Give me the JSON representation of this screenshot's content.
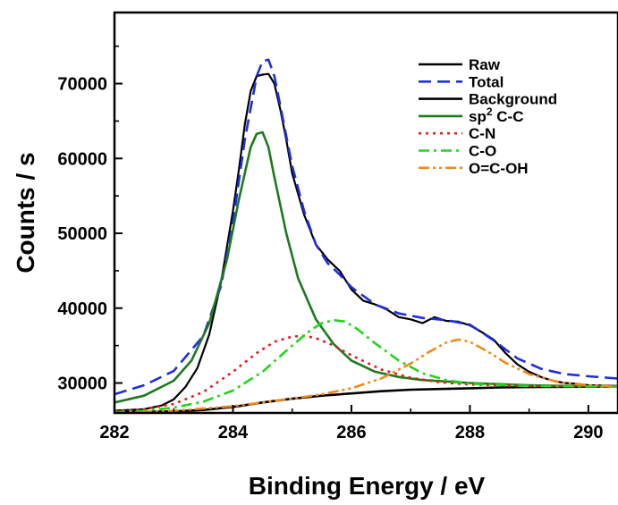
{
  "chart_data": {
    "type": "line",
    "title": "",
    "xlabel": "Binding Energy / eV",
    "ylabel": "Counts / s",
    "xlim": [
      282,
      290.5
    ],
    "ylim": [
      26000,
      79500
    ],
    "xticks": [
      282,
      284,
      286,
      288,
      290
    ],
    "xtick_labels": [
      "282",
      "284",
      "286",
      "288",
      "290"
    ],
    "yticks": [
      30000,
      40000,
      50000,
      60000,
      70000
    ],
    "ytick_labels": [
      "30000",
      "40000",
      "50000",
      "60000",
      "70000"
    ],
    "legend_position": "top-right",
    "grid": false,
    "legend": [
      {
        "key": "raw",
        "label": "Raw"
      },
      {
        "key": "total",
        "label": "Total"
      },
      {
        "key": "background",
        "label": "Background"
      },
      {
        "key": "sp2",
        "label_main": "sp",
        "label_sup": "2",
        "label_rest": " C-C"
      },
      {
        "key": "cn",
        "label": "C-N"
      },
      {
        "key": "co",
        "label": "C-O"
      },
      {
        "key": "ocoh",
        "label": "O=C-OH"
      }
    ],
    "series": [
      {
        "key": "raw",
        "name": "Raw",
        "color": "#000000",
        "dash": "solid",
        "x": [
          282.0,
          282.5,
          282.8,
          283.0,
          283.2,
          283.4,
          283.6,
          283.8,
          284.0,
          284.1,
          284.2,
          284.3,
          284.4,
          284.5,
          284.6,
          284.7,
          284.8,
          284.9,
          285.0,
          285.2,
          285.4,
          285.6,
          285.8,
          286.0,
          286.2,
          286.4,
          286.6,
          286.8,
          287.0,
          287.2,
          287.4,
          287.6,
          287.8,
          288.0,
          288.2,
          288.4,
          288.6,
          288.8,
          289.0,
          289.2,
          289.4,
          289.6,
          289.8,
          290.0,
          290.5
        ],
        "y": [
          26300,
          26500,
          27000,
          27800,
          29500,
          32000,
          36500,
          43500,
          53000,
          58500,
          64500,
          69000,
          71000,
          71200,
          71300,
          70000,
          66500,
          62500,
          58000,
          52500,
          48500,
          46500,
          45000,
          42500,
          41000,
          40500,
          39800,
          38800,
          38500,
          38000,
          38800,
          38300,
          38200,
          37700,
          36800,
          35800,
          34000,
          32500,
          31500,
          30800,
          30300,
          30000,
          29900,
          29700,
          29600
        ]
      },
      {
        "key": "total",
        "name": "Total",
        "color": "#1f2ee0",
        "dash": "dashed",
        "x": [
          282.0,
          282.5,
          283.0,
          283.5,
          283.8,
          284.0,
          284.2,
          284.4,
          284.5,
          284.6,
          284.7,
          284.8,
          285.0,
          285.2,
          285.4,
          285.6,
          285.8,
          286.0,
          286.4,
          286.8,
          287.2,
          287.6,
          288.0,
          288.4,
          288.8,
          289.2,
          289.6,
          290.0,
          290.5
        ],
        "y": [
          28500,
          29700,
          31600,
          36300,
          43000,
          51500,
          62500,
          71000,
          73000,
          73200,
          71000,
          67000,
          59000,
          53000,
          48500,
          46000,
          44500,
          42800,
          40500,
          39300,
          38700,
          38400,
          37800,
          35700,
          33300,
          31900,
          31200,
          30900,
          30600
        ]
      },
      {
        "key": "background",
        "name": "Background",
        "color": "#000000",
        "dash": "solid",
        "x": [
          282.0,
          283.0,
          283.5,
          284.0,
          284.5,
          285.0,
          285.5,
          286.0,
          286.5,
          287.0,
          287.5,
          288.0,
          288.5,
          289.0,
          290.0,
          290.5
        ],
        "y": [
          26100,
          26200,
          26400,
          26800,
          27400,
          27900,
          28300,
          28600,
          28900,
          29100,
          29200,
          29300,
          29400,
          29450,
          29500,
          29500
        ]
      },
      {
        "key": "sp2",
        "name": "sp2 C-C",
        "color": "#1e7a1e",
        "dash": "solid",
        "x": [
          282.0,
          282.5,
          283.0,
          283.3,
          283.6,
          283.9,
          284.1,
          284.3,
          284.4,
          284.5,
          284.6,
          284.7,
          284.9,
          285.1,
          285.4,
          285.7,
          286.0,
          286.4,
          286.8,
          287.2,
          288.0,
          289.0,
          290.5
        ],
        "y": [
          27400,
          28300,
          30300,
          33000,
          38000,
          46500,
          54500,
          61500,
          63300,
          63500,
          61500,
          57500,
          50000,
          44000,
          38500,
          35200,
          33000,
          31500,
          30800,
          30400,
          30000,
          29700,
          29500
        ]
      },
      {
        "key": "cn",
        "name": "C-N",
        "color": "#e81c1c",
        "dash": "dotted",
        "x": [
          282.0,
          282.5,
          283.0,
          283.5,
          284.0,
          284.4,
          284.7,
          285.0,
          285.2,
          285.4,
          285.7,
          286.0,
          286.5,
          287.0,
          287.5,
          288.0,
          289.0,
          290.5
        ],
        "y": [
          26200,
          26500,
          27200,
          28800,
          31500,
          34000,
          35500,
          36200,
          36300,
          36000,
          35000,
          33700,
          31800,
          30700,
          30100,
          29800,
          29600,
          29500
        ]
      },
      {
        "key": "co",
        "name": "C-O",
        "color": "#22d41f",
        "dash": "dashdot",
        "x": [
          282.0,
          282.5,
          283.0,
          283.5,
          284.0,
          284.5,
          285.0,
          285.3,
          285.5,
          285.7,
          285.9,
          286.1,
          286.4,
          286.8,
          287.2,
          287.6,
          288.0,
          289.0,
          290.5
        ],
        "y": [
          26100,
          26300,
          26700,
          27500,
          29000,
          31500,
          35000,
          37000,
          38000,
          38400,
          38200,
          37200,
          35300,
          33000,
          31300,
          30400,
          29900,
          29600,
          29500
        ]
      },
      {
        "key": "ocoh",
        "name": "O=C-OH",
        "color": "#f08a1a",
        "dash": "dashdotdot",
        "x": [
          282.0,
          283.0,
          284.0,
          284.5,
          285.0,
          285.5,
          286.0,
          286.5,
          287.0,
          287.3,
          287.6,
          287.8,
          288.0,
          288.3,
          288.6,
          289.0,
          289.5,
          290.0,
          290.5
        ],
        "y": [
          26000,
          26300,
          26900,
          27400,
          27900,
          28500,
          29300,
          30600,
          32600,
          34100,
          35400,
          35800,
          35500,
          34200,
          32700,
          31200,
          30100,
          29700,
          29500
        ]
      }
    ]
  }
}
